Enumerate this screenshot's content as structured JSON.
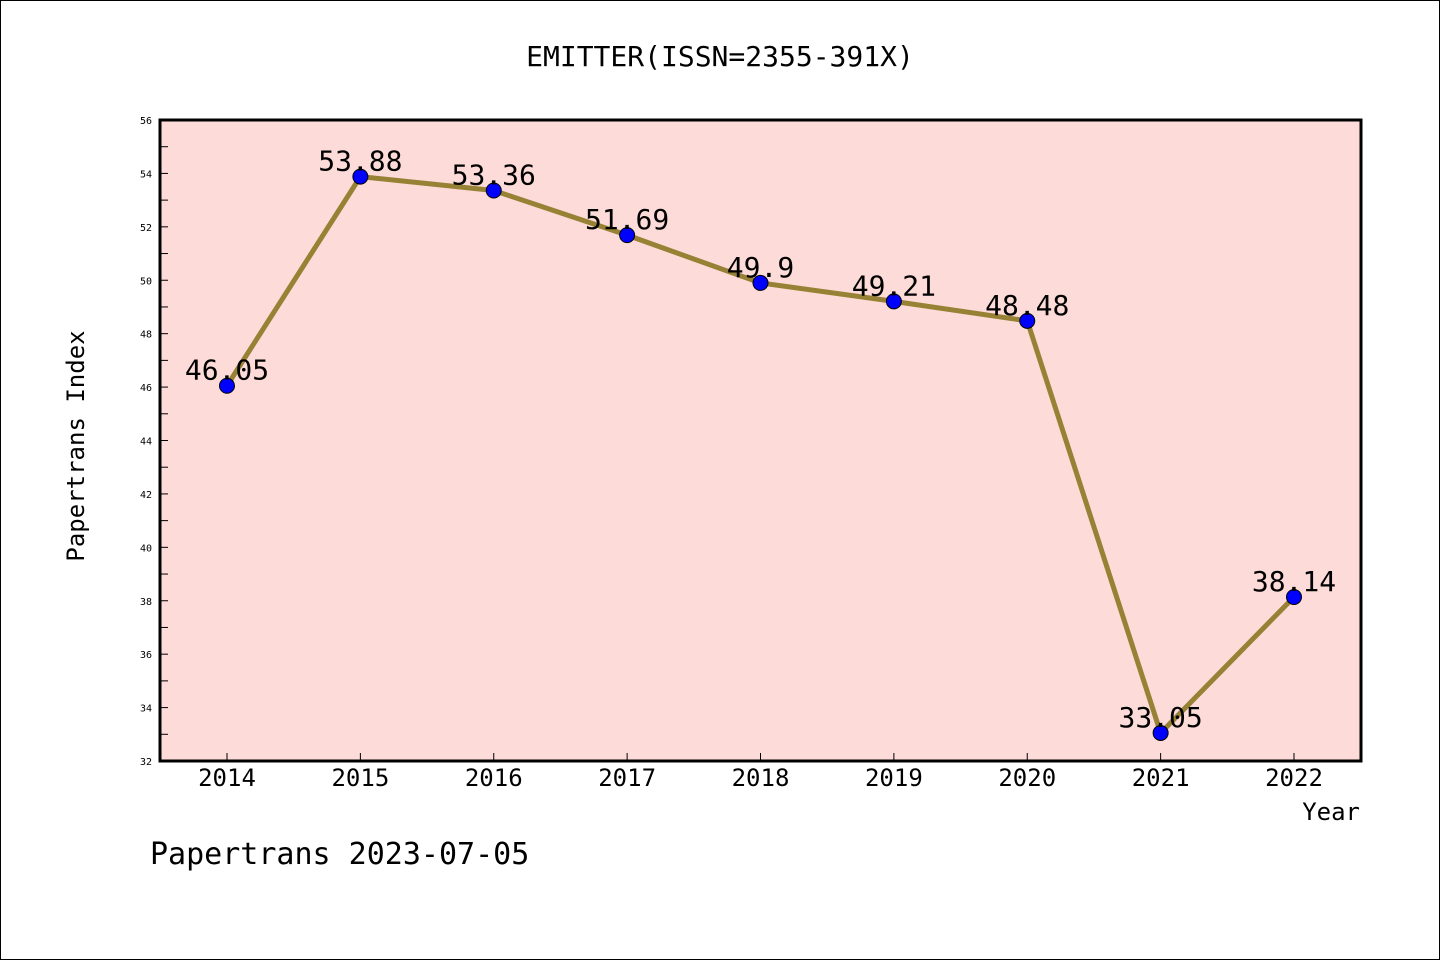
{
  "chart_data": {
    "type": "line",
    "title": "EMITTER(ISSN=2355-391X)",
    "xlabel": "Year",
    "ylabel": "Papertrans Index",
    "categories": [
      "2014",
      "2015",
      "2016",
      "2017",
      "2018",
      "2019",
      "2020",
      "2021",
      "2022"
    ],
    "values": [
      46.05,
      53.88,
      53.36,
      51.69,
      49.9,
      49.21,
      48.48,
      33.05,
      38.14
    ],
    "data_labels": [
      "46.05",
      "53.88",
      "53.36",
      "51.69",
      "49.9",
      "49.21",
      "48.48",
      "33.05",
      "38.14"
    ],
    "ylim": [
      32,
      56
    ],
    "yticks": [
      32,
      34,
      36,
      38,
      40,
      42,
      44,
      46,
      48,
      50,
      52,
      54,
      56
    ],
    "grid": false,
    "colors": {
      "plot_background": "#fddbd8",
      "line": "#978134",
      "marker": "#0000ff"
    }
  },
  "footer": "Papertrans 2023-07-05"
}
